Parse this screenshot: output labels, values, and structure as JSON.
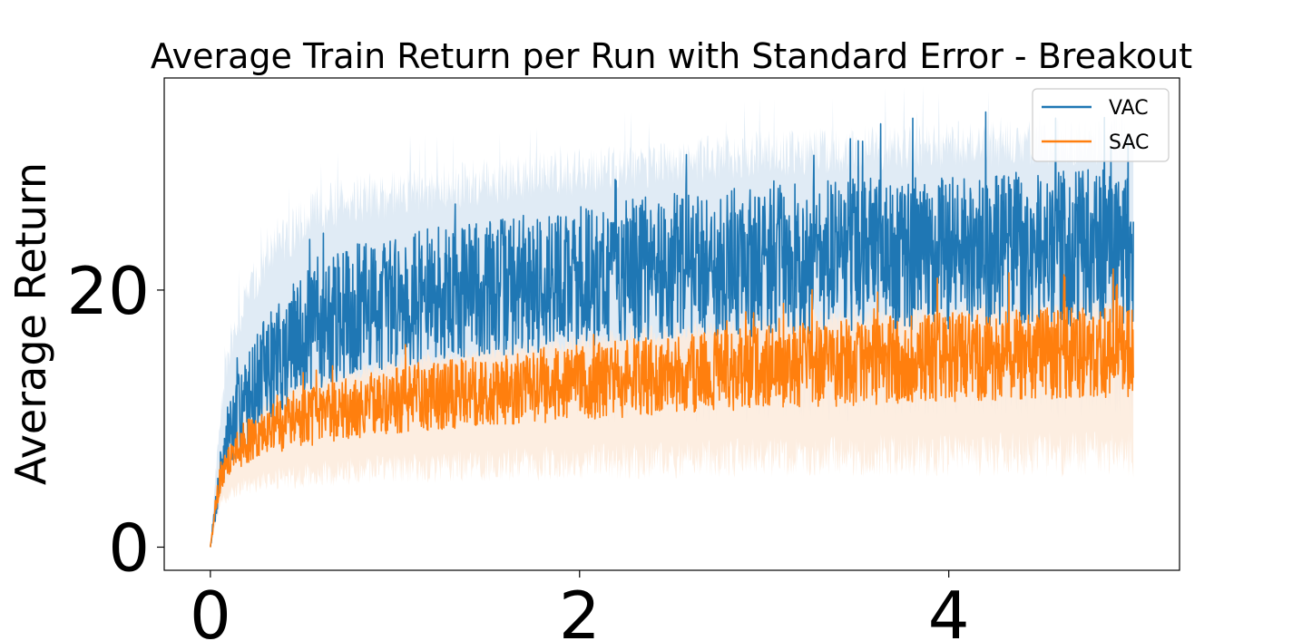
{
  "chart_data": {
    "type": "line",
    "title": "Average Train Return per Run with Standard Error - Breakout",
    "xlabel": "",
    "ylabel": "Average Return",
    "xlim": [
      -0.25,
      5.25
    ],
    "ylim": [
      -1.8,
      36.5
    ],
    "x_ticks": [
      0,
      2,
      4
    ],
    "y_ticks": [
      0,
      20
    ],
    "grid": false,
    "legend_position": "top-right",
    "series": [
      {
        "name": "VAC",
        "color": "#1f77b4",
        "band_color": "#dbe8f3",
        "x": [
          0,
          0.05,
          0.1,
          0.2,
          0.3,
          0.5,
          0.75,
          1.0,
          1.5,
          2.0,
          2.5,
          3.0,
          3.5,
          4.0,
          4.5,
          5.0
        ],
        "mean": [
          0,
          5.5,
          8.8,
          11.5,
          13.8,
          16.5,
          18.3,
          19.2,
          20.2,
          21.0,
          21.8,
          22.3,
          22.7,
          23.0,
          23.2,
          23.4
        ],
        "band_low": [
          0,
          3.5,
          6.0,
          7.8,
          9.0,
          10.2,
          10.8,
          11.0,
          11.3,
          11.6,
          11.8,
          12.0,
          12.1,
          12.2,
          12.3,
          12.3
        ],
        "band_high": [
          0,
          10.0,
          15.5,
          19.5,
          22.5,
          25.5,
          27.0,
          27.5,
          28.5,
          29.2,
          30.0,
          30.6,
          31.0,
          31.3,
          31.5,
          31.6
        ]
      },
      {
        "name": "SAC",
        "color": "#ff7f0e",
        "band_color": "#fdebdc",
        "x": [
          0,
          0.05,
          0.1,
          0.2,
          0.3,
          0.5,
          0.75,
          1.0,
          1.5,
          2.0,
          2.5,
          3.0,
          3.5,
          4.0,
          4.5,
          5.0
        ],
        "mean": [
          0,
          5.2,
          6.8,
          8.2,
          9.0,
          10.0,
          10.8,
          11.4,
          12.2,
          12.8,
          13.4,
          14.0,
          14.4,
          14.8,
          15.1,
          15.2
        ],
        "band_low": [
          0,
          3.2,
          4.2,
          4.8,
          5.2,
          5.6,
          5.9,
          6.1,
          6.4,
          6.6,
          6.8,
          7.0,
          7.1,
          7.2,
          7.2,
          7.2
        ],
        "band_high": [
          0,
          6.8,
          8.6,
          10.2,
          11.2,
          12.6,
          13.5,
          14.2,
          15.2,
          16.0,
          16.7,
          17.4,
          17.9,
          18.3,
          18.6,
          18.7
        ]
      }
    ]
  }
}
